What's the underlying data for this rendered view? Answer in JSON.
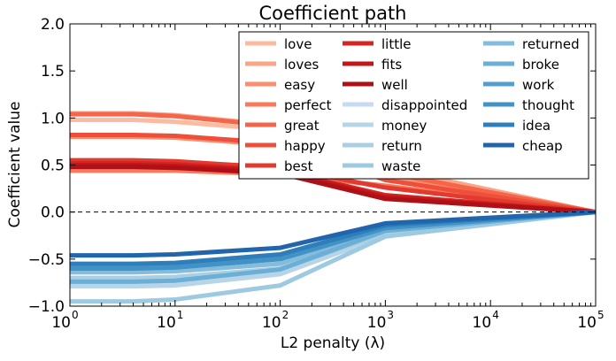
{
  "chart_data": {
    "type": "line",
    "title": "Coefficient path",
    "xlabel": "L2 penalty (λ)",
    "ylabel": "Coefficient value",
    "xscale": "log",
    "xlim": [
      1,
      100000
    ],
    "ylim": [
      -1.0,
      2.0
    ],
    "grid": false,
    "legend_position": "top-right",
    "x": [
      1,
      4,
      10,
      100,
      1000,
      100000
    ],
    "x_tick_base": "10",
    "x_tick_exponents": [
      "0",
      "1",
      "2",
      "3",
      "4",
      "5"
    ],
    "y_ticks": [
      "−1.0",
      "−0.5",
      "0.0",
      "0.5",
      "1.0",
      "1.5",
      "2.0"
    ],
    "zero_line": true,
    "series": [
      {
        "name": "love",
        "color": "#fcbba1",
        "values": [
          0.98,
          0.98,
          0.96,
          0.87,
          0.43,
          0.0
        ]
      },
      {
        "name": "loves",
        "color": "#fca486",
        "values": [
          1.05,
          1.05,
          1.03,
          0.92,
          0.47,
          0.0
        ]
      },
      {
        "name": "easy",
        "color": "#fc8d6d",
        "values": [
          0.8,
          0.8,
          0.79,
          0.71,
          0.38,
          0.0
        ]
      },
      {
        "name": "perfect",
        "color": "#f87a5b",
        "values": [
          0.44,
          0.44,
          0.44,
          0.4,
          0.28,
          0.0
        ]
      },
      {
        "name": "great",
        "color": "#f4654a",
        "values": [
          1.04,
          1.04,
          1.02,
          0.91,
          0.42,
          0.0
        ]
      },
      {
        "name": "happy",
        "color": "#ee4f3a",
        "values": [
          0.82,
          0.82,
          0.81,
          0.73,
          0.34,
          0.0
        ]
      },
      {
        "name": "best",
        "color": "#e33a2f",
        "values": [
          0.55,
          0.55,
          0.54,
          0.47,
          0.26,
          0.0
        ]
      },
      {
        "name": "little",
        "color": "#d52622",
        "values": [
          0.52,
          0.52,
          0.51,
          0.44,
          0.18,
          0.0
        ]
      },
      {
        "name": "fits",
        "color": "#c3161b",
        "values": [
          0.5,
          0.5,
          0.49,
          0.43,
          0.16,
          0.0
        ]
      },
      {
        "name": "well",
        "color": "#ad1117",
        "values": [
          0.48,
          0.48,
          0.47,
          0.41,
          0.14,
          0.0
        ]
      },
      {
        "name": "disappointed",
        "color": "#c6dbef",
        "values": [
          -0.75,
          -0.75,
          -0.74,
          -0.63,
          -0.22,
          0.0
        ]
      },
      {
        "name": "money",
        "color": "#b8d5e8",
        "values": [
          -0.79,
          -0.79,
          -0.78,
          -0.66,
          -0.25,
          0.0
        ]
      },
      {
        "name": "return",
        "color": "#a9cfe5",
        "values": [
          -0.7,
          -0.7,
          -0.69,
          -0.6,
          -0.23,
          0.0
        ]
      },
      {
        "name": "waste",
        "color": "#9ecae1",
        "values": [
          -0.95,
          -0.95,
          -0.93,
          -0.78,
          -0.26,
          0.0
        ]
      },
      {
        "name": "returned",
        "color": "#85bcdc",
        "values": [
          -0.64,
          -0.64,
          -0.63,
          -0.55,
          -0.19,
          0.0
        ]
      },
      {
        "name": "broke",
        "color": "#6baed6",
        "values": [
          -0.74,
          -0.74,
          -0.73,
          -0.61,
          -0.2,
          0.0
        ]
      },
      {
        "name": "work",
        "color": "#539ecd",
        "values": [
          -0.58,
          -0.58,
          -0.57,
          -0.49,
          -0.15,
          0.0
        ]
      },
      {
        "name": "thought",
        "color": "#4292c6",
        "values": [
          -0.6,
          -0.6,
          -0.59,
          -0.5,
          -0.17,
          0.0
        ]
      },
      {
        "name": "idea",
        "color": "#2e7ebc",
        "values": [
          -0.55,
          -0.55,
          -0.54,
          -0.45,
          -0.14,
          0.0
        ]
      },
      {
        "name": "cheap",
        "color": "#2166ac",
        "values": [
          -0.46,
          -0.46,
          -0.45,
          -0.38,
          -0.12,
          0.0
        ]
      }
    ]
  }
}
